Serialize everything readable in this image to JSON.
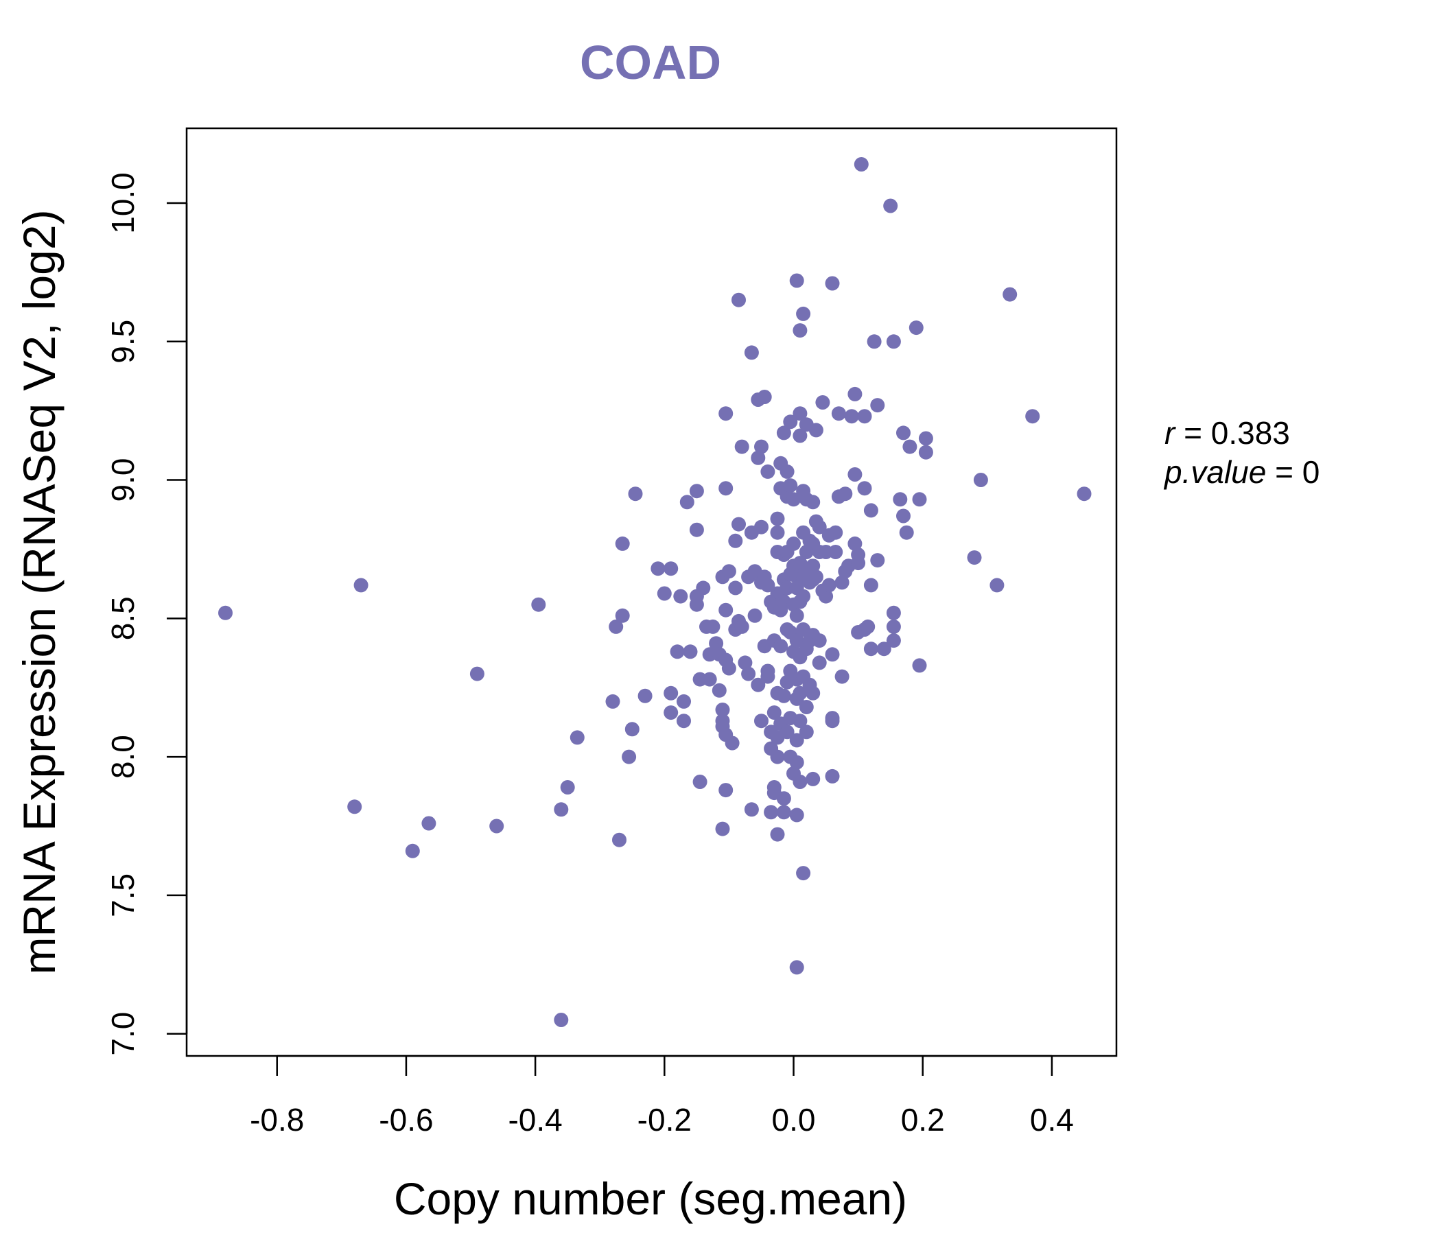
{
  "colors": {
    "point": "#7570b3",
    "title": "#7570b3",
    "axis": "#000000"
  },
  "chart_data": {
    "type": "scatter",
    "title": "COAD",
    "xlabel": "Copy number (seg.mean)",
    "ylabel": "mRNA Expression (RNASeq V2, log2)",
    "xlim": [
      -0.94,
      0.5
    ],
    "ylim": [
      6.92,
      10.27
    ],
    "xticks": [
      -0.8,
      -0.6,
      -0.4,
      -0.2,
      0.0,
      0.2,
      0.4
    ],
    "xtick_labels": [
      "-0.8",
      "-0.6",
      "-0.4",
      "-0.2",
      "0.0",
      "0.2",
      "0.4"
    ],
    "yticks": [
      7.0,
      7.5,
      8.0,
      8.5,
      9.0,
      9.5,
      10.0
    ],
    "ytick_labels": [
      "7.0",
      "7.5",
      "8.0",
      "8.5",
      "9.0",
      "9.5",
      "10.0"
    ],
    "annotations": {
      "r_label": "r",
      "r_value": "0.383",
      "p_label": "p.value",
      "p_value": "0"
    },
    "points": [
      [
        -0.88,
        8.52
      ],
      [
        -0.67,
        8.62
      ],
      [
        -0.68,
        7.82
      ],
      [
        -0.59,
        7.66
      ],
      [
        -0.565,
        7.76
      ],
      [
        -0.49,
        8.3
      ],
      [
        -0.46,
        7.75
      ],
      [
        -0.395,
        8.55
      ],
      [
        -0.36,
        7.05
      ],
      [
        -0.36,
        7.81
      ],
      [
        -0.35,
        7.89
      ],
      [
        -0.335,
        8.07
      ],
      [
        -0.28,
        8.2
      ],
      [
        -0.275,
        8.47
      ],
      [
        -0.27,
        7.7
      ],
      [
        -0.265,
        8.51
      ],
      [
        -0.265,
        8.77
      ],
      [
        -0.255,
        8.0
      ],
      [
        -0.25,
        8.1
      ],
      [
        -0.245,
        8.95
      ],
      [
        -0.23,
        8.22
      ],
      [
        -0.21,
        8.68
      ],
      [
        -0.2,
        8.59
      ],
      [
        -0.19,
        8.68
      ],
      [
        -0.19,
        8.23
      ],
      [
        -0.19,
        8.16
      ],
      [
        -0.18,
        8.38
      ],
      [
        -0.175,
        8.58
      ],
      [
        -0.17,
        8.2
      ],
      [
        -0.17,
        8.13
      ],
      [
        -0.165,
        8.92
      ],
      [
        -0.16,
        8.38
      ],
      [
        -0.15,
        8.96
      ],
      [
        -0.15,
        8.82
      ],
      [
        -0.15,
        8.58
      ],
      [
        -0.15,
        8.55
      ],
      [
        -0.145,
        7.91
      ],
      [
        -0.145,
        8.28
      ],
      [
        -0.14,
        8.61
      ],
      [
        -0.135,
        8.47
      ],
      [
        -0.13,
        8.28
      ],
      [
        -0.13,
        8.37
      ],
      [
        -0.125,
        8.47
      ],
      [
        -0.12,
        8.41
      ],
      [
        -0.115,
        8.37
      ],
      [
        -0.115,
        8.24
      ],
      [
        -0.11,
        8.65
      ],
      [
        -0.11,
        8.17
      ],
      [
        -0.11,
        8.13
      ],
      [
        -0.11,
        8.11
      ],
      [
        -0.11,
        7.74
      ],
      [
        -0.105,
        8.97
      ],
      [
        -0.105,
        9.24
      ],
      [
        -0.105,
        8.53
      ],
      [
        -0.105,
        8.35
      ],
      [
        -0.105,
        8.08
      ],
      [
        -0.105,
        7.88
      ],
      [
        -0.1,
        8.67
      ],
      [
        -0.1,
        8.32
      ],
      [
        -0.095,
        8.05
      ],
      [
        -0.09,
        8.78
      ],
      [
        -0.09,
        8.46
      ],
      [
        -0.09,
        8.61
      ],
      [
        -0.085,
        8.49
      ],
      [
        -0.085,
        8.84
      ],
      [
        -0.085,
        9.65
      ],
      [
        -0.08,
        9.12
      ],
      [
        -0.08,
        8.47
      ],
      [
        -0.075,
        8.34
      ],
      [
        -0.07,
        8.3
      ],
      [
        -0.07,
        8.65
      ],
      [
        -0.065,
        8.81
      ],
      [
        -0.065,
        9.46
      ],
      [
        -0.065,
        7.81
      ],
      [
        -0.06,
        8.67
      ],
      [
        -0.06,
        8.51
      ],
      [
        -0.055,
        9.29
      ],
      [
        -0.055,
        8.26
      ],
      [
        -0.055,
        9.08
      ],
      [
        -0.05,
        8.83
      ],
      [
        -0.05,
        9.12
      ],
      [
        -0.05,
        8.63
      ],
      [
        -0.05,
        8.13
      ],
      [
        -0.045,
        9.3
      ],
      [
        -0.045,
        8.65
      ],
      [
        -0.045,
        8.4
      ],
      [
        -0.04,
        8.62
      ],
      [
        -0.04,
        8.31
      ],
      [
        -0.04,
        9.03
      ],
      [
        -0.04,
        8.29
      ],
      [
        -0.035,
        8.56
      ],
      [
        -0.035,
        8.09
      ],
      [
        -0.035,
        8.03
      ],
      [
        -0.035,
        7.8
      ],
      [
        -0.03,
        8.54
      ],
      [
        -0.03,
        8.42
      ],
      [
        -0.03,
        7.89
      ],
      [
        -0.03,
        8.16
      ],
      [
        -0.03,
        7.87
      ],
      [
        -0.025,
        8.74
      ],
      [
        -0.025,
        8.81
      ],
      [
        -0.025,
        8.59
      ],
      [
        -0.025,
        8.23
      ],
      [
        -0.025,
        8.07
      ],
      [
        -0.025,
        8.0
      ],
      [
        -0.025,
        7.72
      ],
      [
        -0.025,
        8.86
      ],
      [
        -0.02,
        9.06
      ],
      [
        -0.02,
        8.97
      ],
      [
        -0.02,
        8.59
      ],
      [
        -0.02,
        8.53
      ],
      [
        -0.02,
        8.4
      ],
      [
        -0.02,
        8.12
      ],
      [
        -0.015,
        8.73
      ],
      [
        -0.015,
        8.64
      ],
      [
        -0.015,
        8.56
      ],
      [
        -0.015,
        8.22
      ],
      [
        -0.015,
        7.8
      ],
      [
        -0.015,
        9.17
      ],
      [
        -0.015,
        7.85
      ],
      [
        -0.01,
        8.94
      ],
      [
        -0.01,
        8.61
      ],
      [
        -0.01,
        8.46
      ],
      [
        -0.01,
        8.27
      ],
      [
        -0.01,
        8.09
      ],
      [
        -0.01,
        9.03
      ],
      [
        -0.01,
        8.74
      ],
      [
        -0.005,
        8.98
      ],
      [
        -0.005,
        9.21
      ],
      [
        -0.005,
        8.66
      ],
      [
        -0.005,
        8.31
      ],
      [
        -0.005,
        8.14
      ],
      [
        -0.005,
        8.0
      ],
      [
        -0.005,
        8.45
      ],
      [
        0.0,
        8.77
      ],
      [
        0.0,
        8.69
      ],
      [
        0.0,
        8.55
      ],
      [
        0.0,
        7.94
      ],
      [
        0.0,
        8.93
      ],
      [
        0.0,
        8.38
      ],
      [
        0.005,
        8.65
      ],
      [
        0.005,
        8.51
      ],
      [
        0.005,
        8.28
      ],
      [
        0.005,
        8.06
      ],
      [
        0.005,
        7.98
      ],
      [
        0.005,
        9.72
      ],
      [
        0.005,
        7.79
      ],
      [
        0.005,
        7.24
      ],
      [
        0.005,
        8.21
      ],
      [
        0.005,
        8.42
      ],
      [
        0.005,
        8.61
      ],
      [
        0.01,
        9.24
      ],
      [
        0.01,
        8.69
      ],
      [
        0.01,
        8.56
      ],
      [
        0.01,
        8.36
      ],
      [
        0.01,
        8.23
      ],
      [
        0.01,
        8.13
      ],
      [
        0.01,
        7.91
      ],
      [
        0.01,
        8.7
      ],
      [
        0.01,
        9.54
      ],
      [
        0.01,
        9.16
      ],
      [
        0.015,
        8.96
      ],
      [
        0.015,
        8.81
      ],
      [
        0.015,
        8.64
      ],
      [
        0.015,
        8.46
      ],
      [
        0.015,
        8.29
      ],
      [
        0.015,
        7.58
      ],
      [
        0.015,
        9.6
      ],
      [
        0.015,
        8.58
      ],
      [
        0.02,
        8.93
      ],
      [
        0.02,
        8.74
      ],
      [
        0.02,
        8.67
      ],
      [
        0.02,
        8.39
      ],
      [
        0.02,
        8.09
      ],
      [
        0.02,
        9.2
      ],
      [
        0.02,
        8.18
      ],
      [
        0.025,
        8.78
      ],
      [
        0.025,
        8.63
      ],
      [
        0.025,
        8.42
      ],
      [
        0.025,
        8.26
      ],
      [
        0.03,
        8.92
      ],
      [
        0.03,
        8.77
      ],
      [
        0.03,
        8.64
      ],
      [
        0.03,
        8.44
      ],
      [
        0.03,
        8.23
      ],
      [
        0.03,
        7.92
      ],
      [
        0.03,
        8.69
      ],
      [
        0.035,
        9.18
      ],
      [
        0.035,
        8.85
      ],
      [
        0.035,
        8.65
      ],
      [
        0.04,
        8.83
      ],
      [
        0.04,
        8.74
      ],
      [
        0.04,
        8.42
      ],
      [
        0.04,
        8.34
      ],
      [
        0.045,
        9.28
      ],
      [
        0.045,
        8.6
      ],
      [
        0.05,
        8.58
      ],
      [
        0.05,
        8.74
      ],
      [
        0.055,
        8.8
      ],
      [
        0.055,
        8.62
      ],
      [
        0.06,
        9.71
      ],
      [
        0.06,
        8.37
      ],
      [
        0.06,
        8.14
      ],
      [
        0.06,
        8.13
      ],
      [
        0.06,
        7.93
      ],
      [
        0.065,
        8.81
      ],
      [
        0.065,
        8.74
      ],
      [
        0.07,
        9.24
      ],
      [
        0.07,
        8.94
      ],
      [
        0.075,
        8.63
      ],
      [
        0.075,
        8.29
      ],
      [
        0.08,
        8.95
      ],
      [
        0.08,
        8.67
      ],
      [
        0.085,
        8.69
      ],
      [
        0.09,
        9.23
      ],
      [
        0.095,
        9.31
      ],
      [
        0.095,
        9.02
      ],
      [
        0.095,
        8.77
      ],
      [
        0.1,
        8.73
      ],
      [
        0.1,
        8.45
      ],
      [
        0.1,
        8.7
      ],
      [
        0.105,
        10.14
      ],
      [
        0.11,
        9.23
      ],
      [
        0.11,
        8.97
      ],
      [
        0.11,
        8.46
      ],
      [
        0.115,
        8.47
      ],
      [
        0.12,
        8.89
      ],
      [
        0.12,
        8.39
      ],
      [
        0.12,
        8.62
      ],
      [
        0.125,
        9.5
      ],
      [
        0.13,
        8.71
      ],
      [
        0.13,
        9.27
      ],
      [
        0.14,
        8.39
      ],
      [
        0.15,
        9.99
      ],
      [
        0.155,
        9.5
      ],
      [
        0.155,
        8.52
      ],
      [
        0.155,
        8.47
      ],
      [
        0.155,
        8.42
      ],
      [
        0.165,
        8.93
      ],
      [
        0.17,
        8.87
      ],
      [
        0.17,
        9.17
      ],
      [
        0.175,
        8.81
      ],
      [
        0.18,
        9.12
      ],
      [
        0.19,
        9.55
      ],
      [
        0.195,
        8.93
      ],
      [
        0.195,
        8.33
      ],
      [
        0.205,
        9.1
      ],
      [
        0.205,
        9.15
      ],
      [
        0.28,
        8.72
      ],
      [
        0.29,
        9.0
      ],
      [
        0.315,
        8.62
      ],
      [
        0.335,
        9.67
      ],
      [
        0.37,
        9.23
      ],
      [
        0.45,
        8.95
      ]
    ]
  }
}
